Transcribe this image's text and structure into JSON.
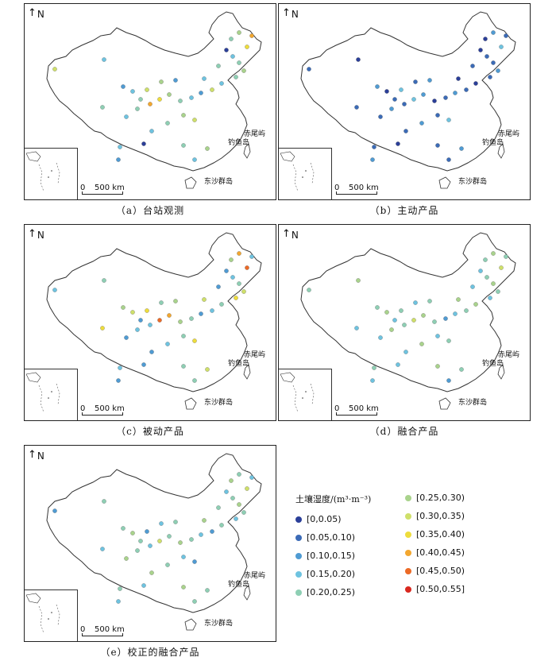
{
  "panels": [
    {
      "caption": "（a）台站观测",
      "palette": [
        0,
        3,
        4,
        5,
        4,
        3,
        6,
        2,
        3,
        4,
        5,
        7,
        8,
        4,
        3,
        2,
        5,
        6,
        4,
        3
      ]
    },
    {
      "caption": "（b）主动产品",
      "palette": [
        0,
        1,
        1,
        2,
        1,
        0,
        1,
        2,
        1,
        0,
        2,
        3,
        1,
        1,
        0,
        2,
        1,
        3,
        2,
        1
      ]
    },
    {
      "caption": "（c）被动产品",
      "palette": [
        2,
        3,
        4,
        6,
        7,
        4,
        3,
        2,
        4,
        5,
        8,
        9,
        3,
        2,
        6,
        5,
        4,
        7,
        3,
        2
      ]
    },
    {
      "caption": "（d）融合产品",
      "palette": [
        3,
        4,
        5,
        4,
        3,
        5,
        4,
        3,
        2,
        4,
        5,
        6,
        4,
        3,
        5,
        4,
        3,
        4,
        5,
        3
      ]
    },
    {
      "caption": "（e）校正的融合产品",
      "palette": [
        3,
        4,
        5,
        4,
        3,
        4,
        2,
        3,
        4,
        5,
        4,
        6,
        3,
        4,
        5,
        4,
        3,
        2,
        4,
        5
      ]
    }
  ],
  "north_label": "N",
  "scale_zero": "0",
  "scale_text": "500 km",
  "place_diaoyu": "赤尾屿",
  "place_diaoyu2": "钓鱼岛",
  "place_dongsha": "东沙群岛",
  "legend": {
    "title": "土壤湿度/(m³·m⁻³)",
    "classes": [
      {
        "label": "[0,0.05)",
        "color": "#2b3f99"
      },
      {
        "label": "[0.05,0.10)",
        "color": "#3b6bb7"
      },
      {
        "label": "[0.10,0.15)",
        "color": "#4f9bd3"
      },
      {
        "label": "[0.15,0.20)",
        "color": "#6ec3e0"
      },
      {
        "label": "[0.20,0.25)",
        "color": "#8ecfb4"
      },
      {
        "label": "[0.25,0.30)",
        "color": "#a9d38c"
      },
      {
        "label": "[0.30,0.35)",
        "color": "#cfe06a"
      },
      {
        "label": "[0.35,0.40)",
        "color": "#eedd3c"
      },
      {
        "label": "[0.40,0.45)",
        "color": "#f3a72f"
      },
      {
        "label": "[0.45,0.50)",
        "color": "#ec6a26"
      },
      {
        "label": "[0.50,0.55]",
        "color": "#d9281f"
      }
    ]
  }
}
